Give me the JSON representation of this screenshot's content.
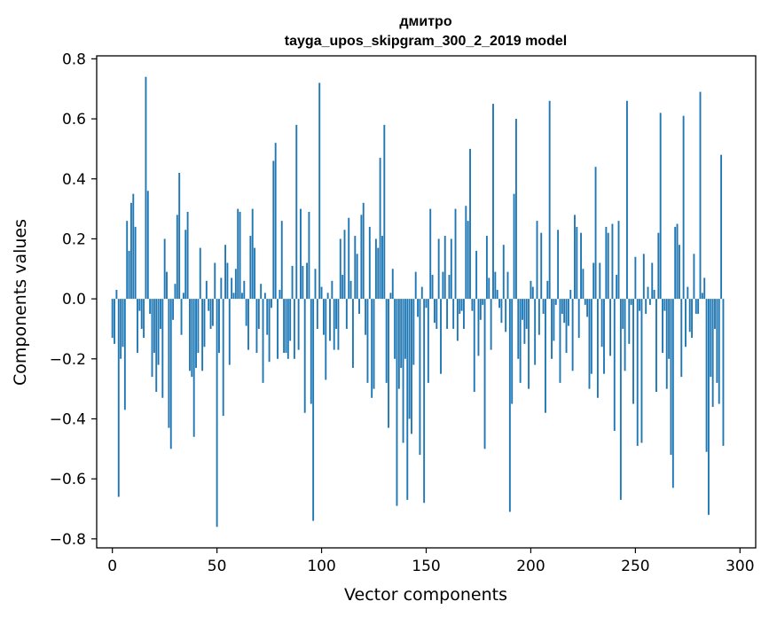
{
  "chart_data": {
    "type": "bar",
    "title": "дмитро",
    "subtitle": "tayga_upos_skipgram_300_2_2019 model",
    "xlabel": "Vector components",
    "ylabel": "Components values",
    "xlim": [
      -7.5,
      307.5
    ],
    "ylim": [
      -0.83,
      0.81
    ],
    "xticks": [
      0,
      50,
      100,
      150,
      200,
      250,
      300
    ],
    "xtick_labels": [
      "0",
      "50",
      "100",
      "150",
      "200",
      "250",
      "300"
    ],
    "yticks": [
      0.8,
      0.6,
      0.4,
      0.2,
      0.0,
      -0.2,
      -0.4,
      -0.6,
      -0.8
    ],
    "ytick_labels": [
      "0.8",
      "0.6",
      "0.4",
      "0.2",
      "0.0",
      "−0.2",
      "−0.4",
      "−0.6",
      "−0.8"
    ],
    "grid": false,
    "legend": false,
    "bar_color": "#1f77b4",
    "categories_start": 0,
    "values": [
      -0.13,
      -0.15,
      0.03,
      -0.66,
      -0.2,
      -0.16,
      -0.37,
      0.26,
      0.16,
      0.32,
      0.35,
      0.24,
      -0.18,
      -0.04,
      -0.1,
      -0.13,
      0.74,
      0.36,
      -0.05,
      -0.26,
      -0.18,
      -0.31,
      -0.22,
      -0.1,
      -0.33,
      0.2,
      0.09,
      -0.43,
      -0.5,
      -0.07,
      0.05,
      0.28,
      0.42,
      -0.12,
      0.02,
      0.23,
      0.29,
      -0.24,
      -0.26,
      -0.46,
      -0.23,
      -0.18,
      0.17,
      -0.24,
      -0.16,
      0.06,
      -0.04,
      -0.1,
      -0.09,
      0.12,
      -0.76,
      -0.18,
      0.07,
      -0.39,
      0.18,
      0.12,
      -0.22,
      0.07,
      0.02,
      0.1,
      0.3,
      0.29,
      0.02,
      0.06,
      -0.09,
      -0.17,
      0.21,
      0.3,
      0.17,
      -0.18,
      -0.1,
      0.05,
      -0.28,
      0.02,
      -0.12,
      -0.21,
      -0.03,
      0.46,
      0.52,
      -0.2,
      0.03,
      0.26,
      -0.18,
      -0.18,
      -0.2,
      -0.14,
      0.11,
      -0.2,
      0.58,
      -0.17,
      0.3,
      0.11,
      -0.38,
      0.12,
      0.29,
      -0.35,
      -0.74,
      0.1,
      -0.1,
      0.72,
      0.04,
      -0.12,
      -0.27,
      0.02,
      -0.14,
      0.06,
      -0.17,
      -0.1,
      -0.17,
      0.2,
      0.08,
      0.23,
      -0.1,
      0.27,
      0.06,
      -0.23,
      0.21,
      0.15,
      -0.05,
      0.28,
      0.32,
      -0.12,
      -0.28,
      0.24,
      -0.33,
      -0.3,
      0.2,
      0.17,
      0.47,
      0.21,
      0.58,
      -0.28,
      -0.43,
      0.02,
      0.1,
      -0.2,
      -0.69,
      -0.3,
      -0.23,
      -0.48,
      -0.2,
      -0.67,
      -0.4,
      -0.45,
      -0.22,
      0.09,
      -0.06,
      -0.52,
      0.04,
      -0.68,
      -0.03,
      -0.28,
      0.3,
      0.08,
      -0.08,
      -0.1,
      0.2,
      -0.25,
      0.09,
      0.21,
      -0.1,
      0.08,
      0.2,
      -0.1,
      0.3,
      -0.14,
      -0.05,
      -0.04,
      -0.1,
      0.31,
      0.26,
      0.5,
      -0.04,
      -0.31,
      0.16,
      -0.19,
      -0.07,
      -0.02,
      -0.5,
      0.21,
      0.07,
      -0.17,
      0.65,
      0.09,
      0.03,
      -0.03,
      -0.08,
      0.18,
      -0.11,
      0.09,
      -0.71,
      -0.35,
      0.35,
      0.6,
      -0.2,
      -0.28,
      -0.07,
      -0.15,
      -0.1,
      -0.3,
      0.06,
      0.04,
      -0.22,
      0.26,
      -0.12,
      0.22,
      -0.05,
      -0.38,
      0.06,
      0.66,
      -0.2,
      -0.14,
      -0.02,
      0.23,
      -0.28,
      -0.05,
      -0.08,
      -0.18,
      -0.09,
      0.03,
      -0.24,
      0.28,
      0.24,
      -0.13,
      0.22,
      0.1,
      -0.02,
      -0.06,
      -0.3,
      -0.25,
      0.12,
      0.44,
      -0.33,
      0.12,
      -0.16,
      -0.25,
      0.24,
      0.22,
      -0.19,
      0.25,
      -0.44,
      0.08,
      0.26,
      -0.67,
      -0.1,
      -0.24,
      0.66,
      -0.15,
      -0.02,
      -0.35,
      0.14,
      -0.49,
      -0.04,
      -0.48,
      0.15,
      -0.05,
      0.04,
      -0.02,
      0.12,
      0.03,
      -0.31,
      0.22,
      0.62,
      -0.18,
      -0.04,
      -0.3,
      -0.2,
      -0.52,
      -0.63,
      0.24,
      0.25,
      0.18,
      -0.26,
      0.61,
      -0.16,
      0.04,
      -0.11,
      -0.13,
      0.15,
      -0.05,
      -0.05,
      0.69,
      0.02,
      0.07,
      -0.51,
      -0.72,
      -0.26,
      -0.36,
      -0.1,
      -0.28,
      -0.35,
      0.48,
      -0.49
    ]
  }
}
